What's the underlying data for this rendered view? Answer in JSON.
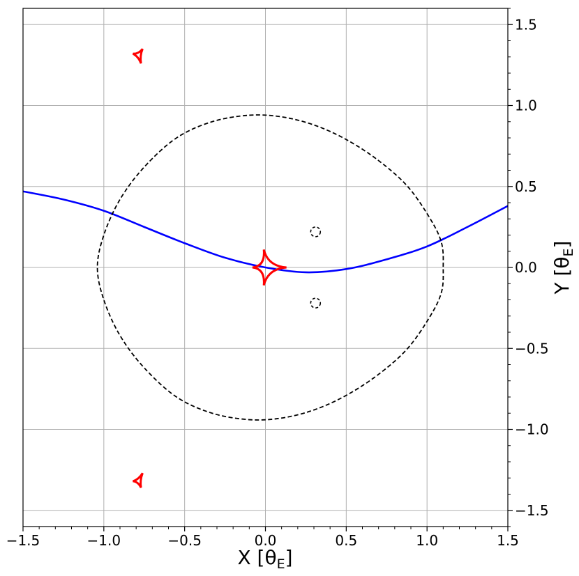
{
  "chart_data": {
    "type": "line",
    "xlabel": {
      "main": "X [θ",
      "sub": "E",
      "close": "]"
    },
    "ylabel": {
      "main": "Y [θ",
      "sub": "E",
      "close": "]"
    },
    "xlim": [
      -1.5,
      1.5
    ],
    "ylim": [
      -1.6,
      1.6
    ],
    "x_ticks": [
      -1.5,
      -1.0,
      -0.5,
      0.0,
      0.5,
      1.0,
      1.5
    ],
    "x_tick_labels": [
      "−1.5",
      "−1.0",
      "−0.5",
      "0.0",
      "0.5",
      "1.0",
      "1.5"
    ],
    "y_ticks": [
      -1.5,
      -1.0,
      -0.5,
      0.0,
      0.5,
      1.0,
      1.5
    ],
    "y_tick_labels": [
      "−1.5",
      "−1.0",
      "−0.5",
      "0.0",
      "0.5",
      "1.0",
      "1.5"
    ],
    "y_axis_side": "right",
    "grid": true,
    "colors": {
      "trajectory": "#0000ff",
      "caustic": "#ff0000",
      "critical_curve": "#000000",
      "grid": "#b0b0b0"
    },
    "series": [
      {
        "kind": "source-trajectory",
        "style": "solid",
        "x": [
          -1.5,
          -1.25,
          -1.0,
          -0.75,
          -0.5,
          -0.25,
          0.0,
          0.25,
          0.5,
          0.75,
          1.0,
          1.25,
          1.5
        ],
        "y": [
          0.47,
          0.42,
          0.35,
          0.25,
          0.15,
          0.06,
          0.0,
          -0.03,
          -0.01,
          0.05,
          0.13,
          0.25,
          0.38
        ]
      },
      {
        "kind": "critical-curve-outer",
        "style": "dashed",
        "x": [
          -0.1,
          0.1,
          0.3,
          0.5,
          0.7,
          0.88,
          1.02,
          1.09,
          1.1,
          1.09,
          1.02,
          0.88,
          0.7,
          0.5,
          0.3,
          0.1,
          -0.1,
          -0.33,
          -0.55,
          -0.75,
          -0.9,
          -1.0,
          -1.04,
          -1.0,
          -0.9,
          -0.75,
          -0.55,
          -0.33,
          -0.1
        ],
        "y": [
          0.94,
          0.93,
          0.88,
          0.79,
          0.66,
          0.5,
          0.3,
          0.15,
          0.0,
          -0.15,
          -0.3,
          -0.5,
          -0.66,
          -0.79,
          -0.88,
          -0.93,
          -0.94,
          -0.9,
          -0.8,
          -0.62,
          -0.42,
          -0.2,
          0.0,
          0.2,
          0.42,
          0.62,
          0.8,
          0.9,
          0.94
        ]
      },
      {
        "kind": "critical-curve-small-upper",
        "style": "dashed",
        "center": [
          0.31,
          0.22
        ],
        "radius": 0.03
      },
      {
        "kind": "critical-curve-small-lower",
        "style": "dashed",
        "center": [
          0.31,
          -0.22
        ],
        "radius": 0.03
      },
      {
        "kind": "central-caustic",
        "style": "solid",
        "cusps": [
          [
            0.13,
            0.0
          ],
          [
            -0.01,
            0.11
          ],
          [
            -0.08,
            0.0
          ],
          [
            -0.01,
            -0.11
          ]
        ]
      },
      {
        "kind": "planetary-caustic-upper",
        "style": "solid",
        "cusps": [
          [
            -0.76,
            1.35
          ],
          [
            -0.82,
            1.32
          ],
          [
            -0.77,
            1.26
          ]
        ]
      },
      {
        "kind": "planetary-caustic-lower",
        "style": "solid",
        "cusps": [
          [
            -0.76,
            -1.27
          ],
          [
            -0.82,
            -1.32
          ],
          [
            -0.77,
            -1.36
          ]
        ]
      }
    ]
  }
}
